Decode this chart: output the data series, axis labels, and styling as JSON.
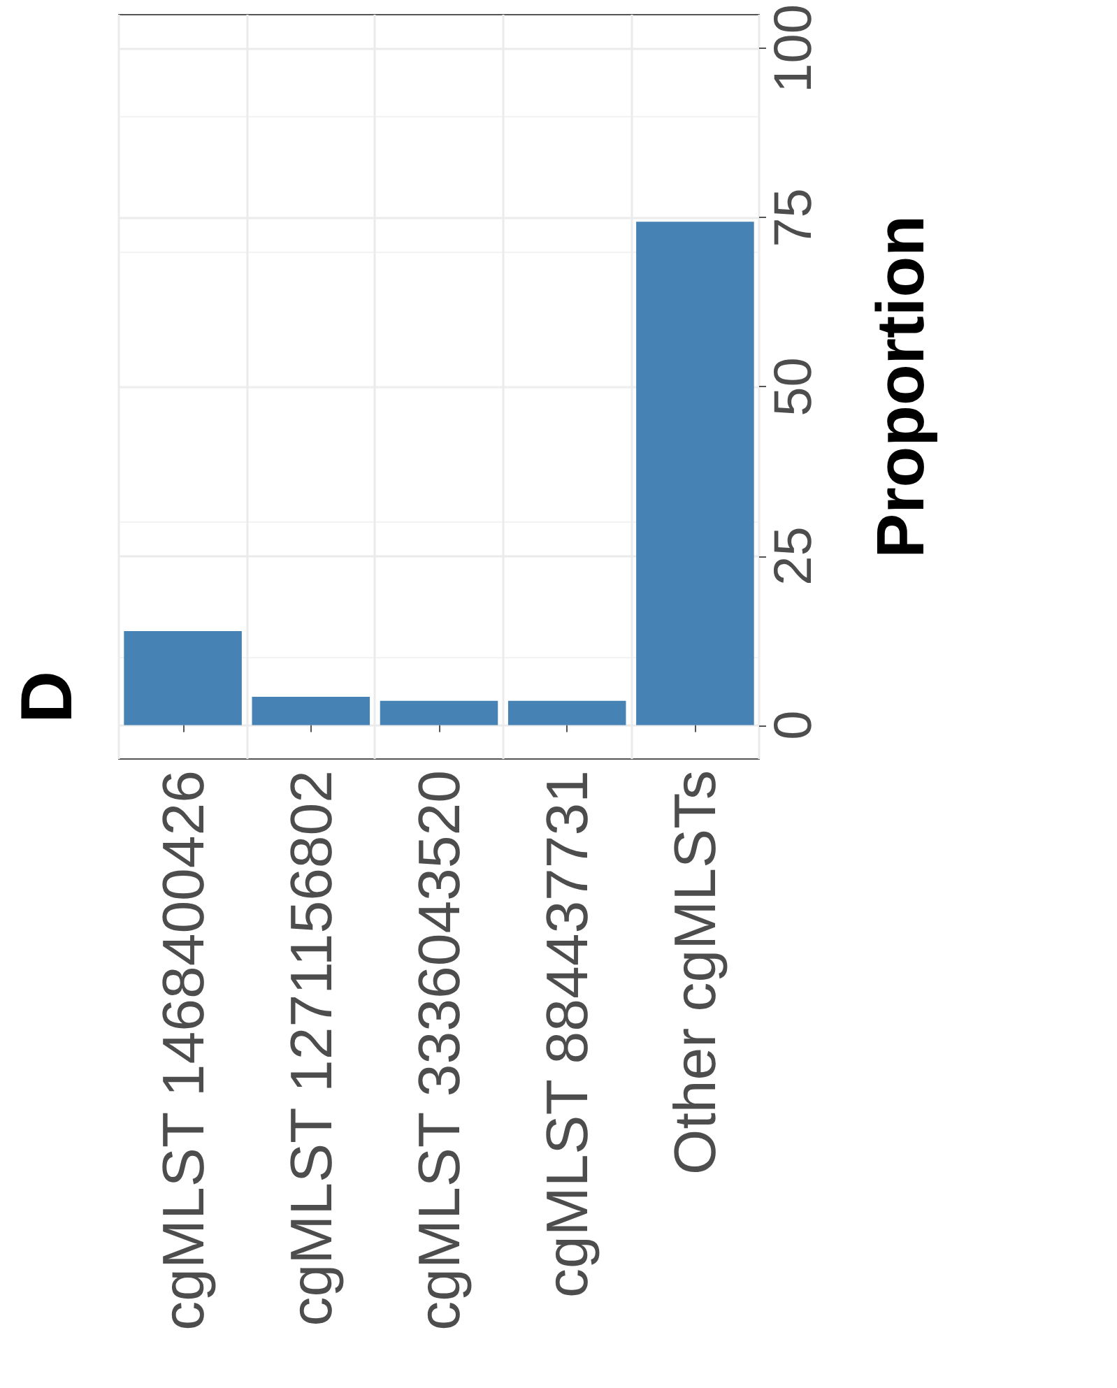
{
  "chart_data": {
    "type": "bar",
    "title": "D",
    "ylabel": "Proportion",
    "categories": [
      "cgMLST 1468400426",
      "cgMLST 1271156802",
      "cgMLST 3336043520",
      "cgMLST 884437731",
      "Other cgMLSTs"
    ],
    "values": [
      13.9,
      4.2,
      3.6,
      3.6,
      74.4
    ],
    "color": "#4682b4",
    "ylim": [
      -5,
      105
    ],
    "yticks": [
      0,
      25,
      50,
      75,
      100
    ],
    "grid": true
  }
}
